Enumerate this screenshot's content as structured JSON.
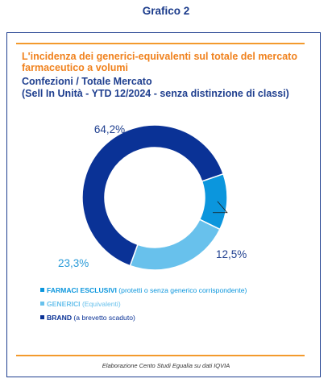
{
  "heading": "Grafico 2",
  "title": {
    "line1": "L'incidenza dei generici-equivalenti sul totale del mercato farmaceutico a volumi",
    "line2": "Confezioni / Totale Mercato",
    "line3": "(Sell In Unità - YTD 12/2024 - senza distinzione di classi)"
  },
  "colors": {
    "accent": "#f39a2d",
    "title_orange": "#f0821e",
    "navy": "#1f3f8f",
    "label_light": "#2a9bd8"
  },
  "chart_data": {
    "type": "pie",
    "variant": "donut",
    "slices": [
      {
        "label": "BRAND (a brevetto scaduto)",
        "value": 64.2,
        "display": "64,2%",
        "color": "#0a3296"
      },
      {
        "label": "FARMACI ESCLUSIVI (protetti o senza generico corrispondente)",
        "value": 12.5,
        "display": "12,5%",
        "color": "#0b96dd"
      },
      {
        "label": "GENERICI (Equivalenti)",
        "value": 23.3,
        "display": "23,3%",
        "color": "#68c1ec"
      }
    ]
  },
  "legend": [
    {
      "label": "FARMACI ESCLUSIVI",
      "detail": "(protetti o senza generico corrispondente)",
      "color": "#0b96dd"
    },
    {
      "label": "GENERICI",
      "detail": "(Equivalenti)",
      "color": "#68c1ec"
    },
    {
      "label": "BRAND",
      "detail": "(a brevetto scaduto)",
      "color": "#0a3296"
    }
  ],
  "source": "Elaborazione Cento Studi Egualia su dati IQVIA"
}
